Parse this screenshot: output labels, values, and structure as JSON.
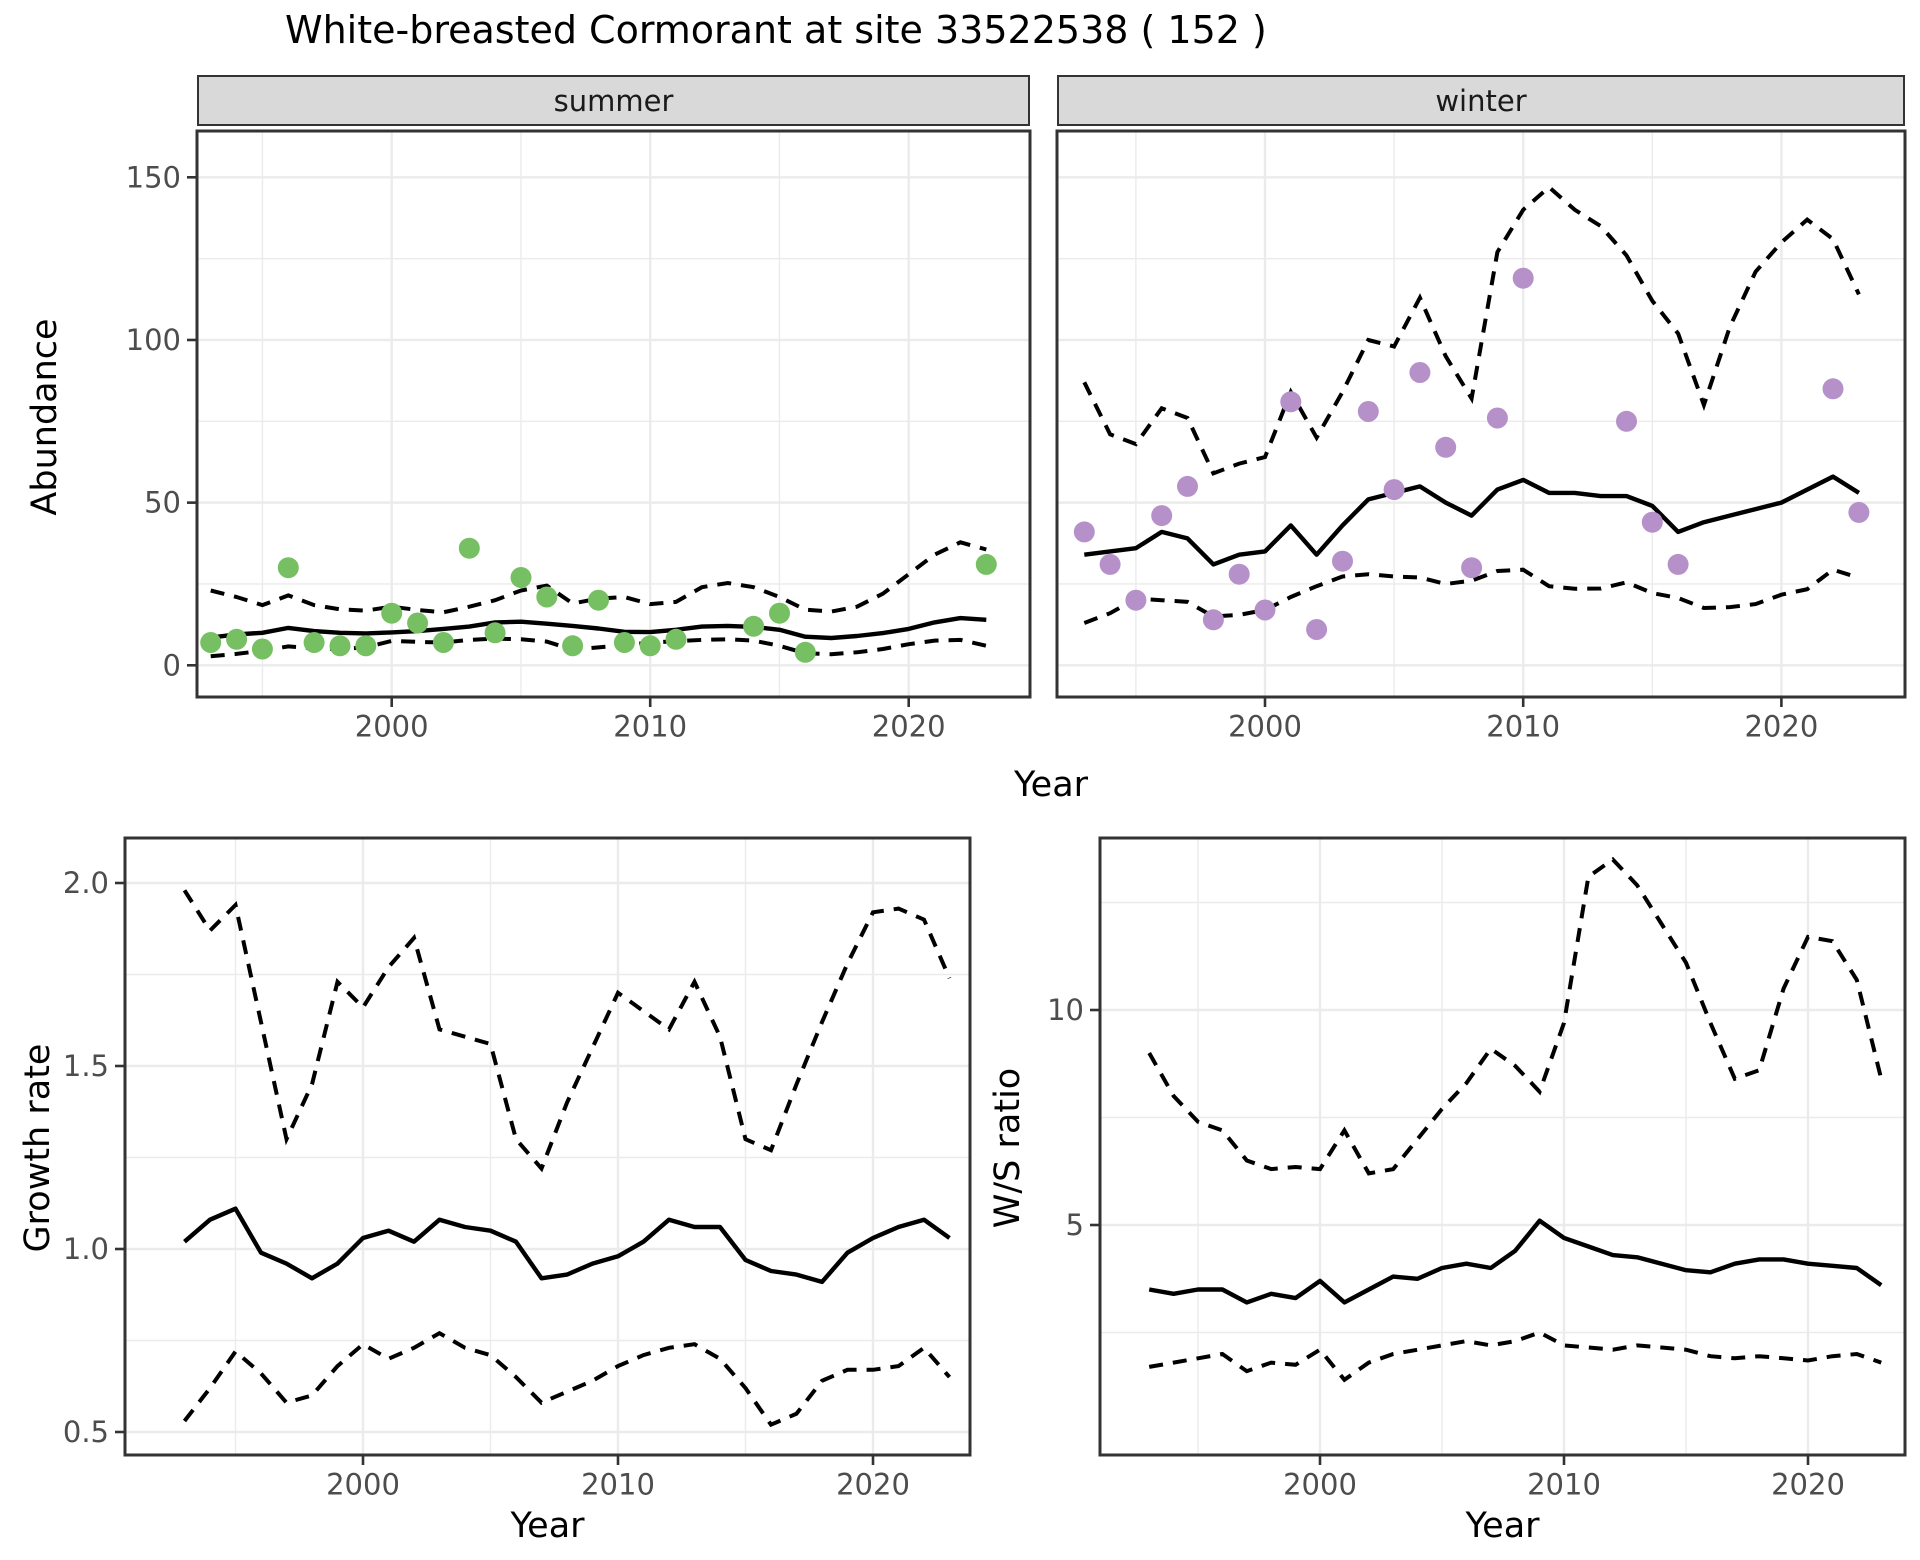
{
  "title": "White-breasted Cormorant at site 33522538 ( 152 )",
  "chart_data": {
    "type": "line",
    "title": "White-breasted Cormorant at site 33522538 ( 152 )",
    "facet_labels": [
      "summer",
      "winter"
    ],
    "axis_labels": {
      "x": "Year",
      "y_top": "Abundance",
      "y_growth": "Growth rate",
      "y_ws": "W/S ratio"
    },
    "legend_position": "none",
    "grid": "on",
    "x_tick_labels": [
      "2000",
      "2010",
      "2020"
    ],
    "x_tick_years": [
      2000,
      2010,
      2020
    ],
    "x_minor_years": [
      1995,
      2005,
      2015
    ],
    "xlim": [
      1992.5,
      2024.7
    ],
    "years": [
      1993,
      1994,
      1995,
      1996,
      1997,
      1998,
      1999,
      2000,
      2001,
      2002,
      2003,
      2004,
      2005,
      2006,
      2007,
      2008,
      2009,
      2010,
      2011,
      2012,
      2013,
      2014,
      2015,
      2016,
      2017,
      2018,
      2019,
      2020,
      2021,
      2022,
      2023
    ],
    "abundance": {
      "ylim": [
        -10,
        164
      ],
      "y_tick_labels": [
        "0",
        "50",
        "100",
        "150"
      ],
      "y_tick_values": [
        0,
        50,
        100,
        150
      ],
      "y_minor_values": [
        25,
        75,
        125
      ],
      "summer": {
        "point_color": "#76bf62",
        "observed": {
          "x": [
            1993,
            1994,
            1995,
            1996,
            1997,
            1998,
            1999,
            2000,
            2001,
            2002,
            2003,
            2004,
            2005,
            2006,
            2007,
            2008,
            2009,
            2010,
            2011,
            2014,
            2015,
            2016,
            2023
          ],
          "y": [
            7,
            8,
            5,
            30,
            7,
            6,
            6,
            16,
            13,
            7,
            36,
            10,
            27,
            21,
            6,
            20,
            7,
            6,
            8,
            12,
            16,
            4,
            31
          ]
        },
        "fit": [
          8.5,
          9.5,
          10,
          11.5,
          10.5,
          10,
          9.8,
          10.1,
          10.5,
          11.2,
          11.9,
          13.2,
          13.4,
          12.8,
          12.1,
          11.3,
          10.3,
          10.2,
          10.9,
          11.9,
          12.1,
          11.8,
          10.9,
          8.8,
          8.4,
          9,
          9.9,
          11.2,
          13.2,
          14.5,
          14
        ],
        "upper_ci": [
          23,
          21,
          18.5,
          21.5,
          18.5,
          17.2,
          16.8,
          18,
          17,
          16.3,
          18,
          20,
          23,
          24.5,
          19,
          20.5,
          21,
          18.8,
          19.5,
          24,
          25.3,
          24,
          21,
          17.1,
          16.5,
          18,
          22,
          28,
          34,
          37.8,
          35.6
        ],
        "lower_ci": [
          2.8,
          3.5,
          4.5,
          5.8,
          5.2,
          5,
          5.5,
          7.5,
          7.2,
          7,
          7.8,
          8.2,
          8,
          7.3,
          4.8,
          5.5,
          6.2,
          7,
          7.4,
          7.8,
          8,
          7.6,
          6,
          3.7,
          3.4,
          4,
          5,
          6.5,
          7.6,
          7.8,
          6
        ]
      },
      "winter": {
        "point_color": "#b691c9",
        "observed": {
          "x": [
            1993,
            1994,
            1995,
            1996,
            1997,
            1998,
            1999,
            2000,
            2001,
            2002,
            2003,
            2004,
            2005,
            2006,
            2007,
            2008,
            2009,
            2010,
            2014,
            2015,
            2016,
            2022,
            2023
          ],
          "y": [
            41,
            31,
            20,
            46,
            55,
            14,
            28,
            17,
            81,
            11,
            32,
            78,
            54,
            90,
            67,
            30,
            76,
            119,
            75,
            44,
            31,
            85,
            47
          ]
        },
        "fit": [
          34,
          35,
          36,
          41,
          39,
          31,
          34,
          35,
          43,
          34,
          43,
          51,
          53,
          55,
          50,
          46,
          54,
          57,
          53,
          53,
          52,
          52,
          49,
          41,
          44,
          46,
          48,
          50,
          54,
          58,
          53
        ],
        "upper_ci": [
          87,
          71,
          68,
          79,
          76,
          59,
          62,
          64,
          84,
          70,
          84,
          100,
          98,
          113,
          95,
          82,
          127,
          140,
          147,
          140,
          135,
          126,
          112,
          102,
          80,
          104,
          121,
          130,
          137,
          131,
          114
        ],
        "lower_ci": [
          13,
          16,
          20.5,
          20,
          19.5,
          15,
          15.5,
          17,
          21,
          24.3,
          27.3,
          28,
          27.3,
          27,
          25,
          26,
          29,
          29.4,
          24.3,
          23.5,
          23.6,
          25.5,
          22.2,
          20.7,
          17.6,
          17.9,
          18.8,
          21.7,
          23.4,
          29.4,
          26.9
        ]
      }
    },
    "growth_rate": {
      "ylim": [
        0.44,
        2.12
      ],
      "y_tick_labels": [
        "0.5",
        "1.0",
        "1.5",
        "2.0"
      ],
      "y_tick_values": [
        0.5,
        1.0,
        1.5,
        2.0
      ],
      "y_minor_values": [
        0.75,
        1.25,
        1.75
      ],
      "fit": [
        1.02,
        1.08,
        1.11,
        0.99,
        0.96,
        0.92,
        0.96,
        1.03,
        1.05,
        1.02,
        1.08,
        1.06,
        1.05,
        1.02,
        0.92,
        0.93,
        0.96,
        0.98,
        1.02,
        1.08,
        1.06,
        1.06,
        0.97,
        0.94,
        0.93,
        0.91,
        0.99,
        1.03,
        1.06,
        1.08,
        1.03
      ],
      "upper_ci": [
        1.98,
        1.87,
        1.94,
        1.62,
        1.3,
        1.45,
        1.73,
        1.66,
        1.77,
        1.85,
        1.6,
        1.58,
        1.56,
        1.3,
        1.22,
        1.4,
        1.55,
        1.7,
        1.65,
        1.6,
        1.73,
        1.58,
        1.3,
        1.27,
        1.45,
        1.62,
        1.78,
        1.92,
        1.93,
        1.9,
        1.74
      ],
      "lower_ci": [
        0.53,
        0.62,
        0.72,
        0.66,
        0.58,
        0.6,
        0.68,
        0.74,
        0.7,
        0.73,
        0.77,
        0.73,
        0.71,
        0.65,
        0.58,
        0.61,
        0.64,
        0.68,
        0.71,
        0.73,
        0.74,
        0.7,
        0.62,
        0.52,
        0.55,
        0.64,
        0.67,
        0.67,
        0.68,
        0.73,
        0.65
      ]
    },
    "ws_ratio": {
      "ylim": [
        -0.3,
        14.1
      ],
      "y_tick_labels": [
        "5",
        "10"
      ],
      "y_tick_values": [
        5,
        10
      ],
      "y_minor_values": [
        2.5,
        7.5,
        12.5
      ],
      "fit": [
        3.5,
        3.4,
        3.5,
        3.5,
        3.2,
        3.4,
        3.3,
        3.7,
        3.2,
        3.5,
        3.8,
        3.75,
        4,
        4.1,
        4,
        4.4,
        5.1,
        4.7,
        4.5,
        4.3,
        4.25,
        4.1,
        3.95,
        3.9,
        4.1,
        4.2,
        4.2,
        4.1,
        4.05,
        4,
        3.6
      ],
      "upper_ci": [
        9,
        8,
        7.4,
        7.2,
        6.5,
        6.3,
        6.35,
        6.3,
        7.2,
        6.2,
        6.3,
        7,
        7.7,
        8.3,
        9.1,
        8.7,
        8.1,
        9.7,
        13.1,
        13.5,
        12.9,
        12,
        11.1,
        9.7,
        8.4,
        8.6,
        10.5,
        11.7,
        11.6,
        10.7,
        8.4
      ],
      "lower_ci": [
        1.7,
        1.8,
        1.9,
        2,
        1.6,
        1.8,
        1.75,
        2.1,
        1.4,
        1.8,
        2,
        2.1,
        2.2,
        2.3,
        2.2,
        2.3,
        2.5,
        2.2,
        2.15,
        2.1,
        2.2,
        2.15,
        2.1,
        1.95,
        1.9,
        1.95,
        1.9,
        1.85,
        1.95,
        2,
        1.8
      ]
    },
    "style": {
      "fit_line_color": "#000000",
      "ci_line_style": "dashed",
      "strip_fill": "#d9d9d9",
      "gridline_color": "#ebebeb",
      "tick_label_color": "#4d4d4d",
      "panel_border_color": "#333333",
      "background": "#ffffff"
    }
  }
}
